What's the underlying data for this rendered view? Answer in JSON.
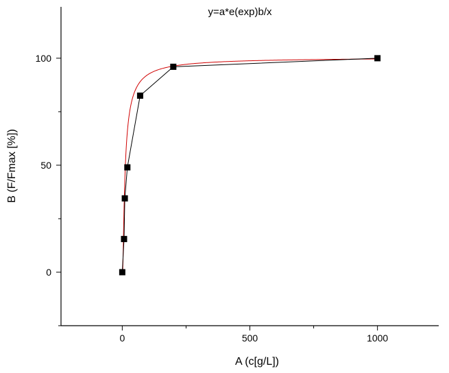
{
  "chart_data": {
    "type": "scatter",
    "title": "y=a*e(exp)b/x",
    "xlabel": "A (c[g/L])",
    "ylabel": "B (F/Fmax [%])",
    "xlim": [
      -240,
      1240
    ],
    "ylim": [
      -25,
      124
    ],
    "x_ticks": [
      0,
      500,
      1000
    ],
    "x_tick_labels": [
      "0",
      "500",
      "1000"
    ],
    "y_ticks": [
      0,
      50,
      100
    ],
    "y_tick_labels": [
      "0",
      "50",
      "100"
    ],
    "grid": false,
    "series": [
      {
        "type": "line+markers",
        "color": "#000000",
        "marker": "square",
        "x": [
          0,
          7,
          10,
          20,
          70,
          200,
          1000
        ],
        "y": [
          0,
          15.5,
          34.5,
          49,
          82.5,
          96,
          100
        ]
      },
      {
        "type": "fit-curve",
        "color": "#d00000",
        "equation": "y = a*exp(b/x)",
        "a": 100.5,
        "b": -8.5
      }
    ]
  }
}
